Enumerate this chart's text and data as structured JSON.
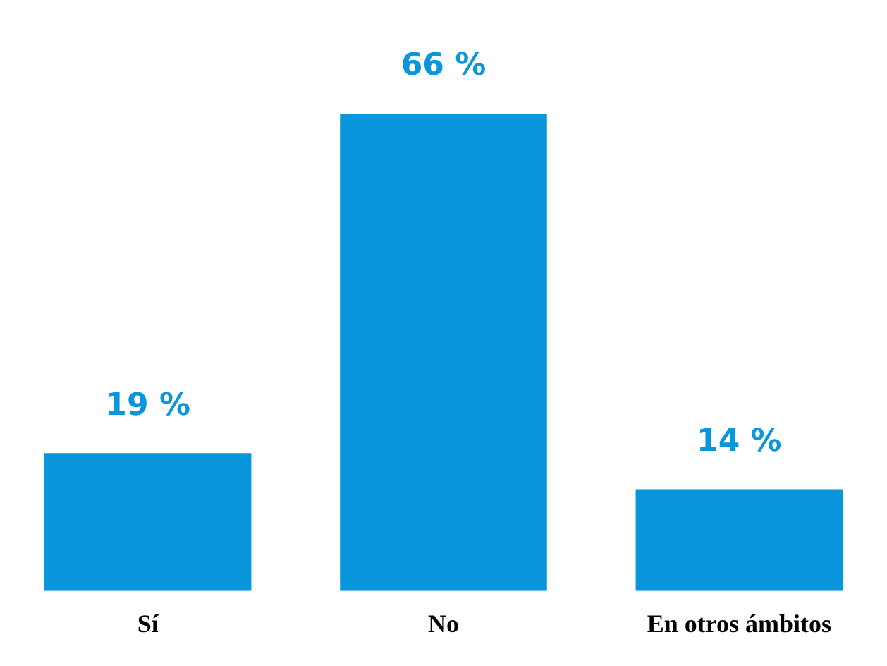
{
  "chart_data": {
    "type": "bar",
    "categories": [
      "Sí",
      "No",
      "En otros ámbitos"
    ],
    "values": [
      19,
      66,
      14
    ],
    "color": "#0a96dc",
    "value_labels": [
      "19 %",
      "66 %",
      "14 %"
    ],
    "grid": false,
    "legend": false
  }
}
